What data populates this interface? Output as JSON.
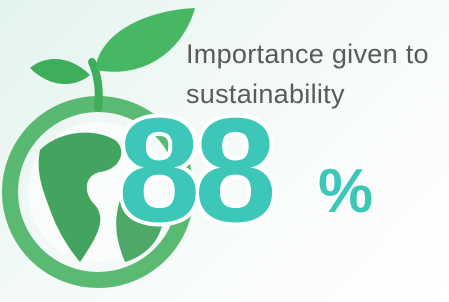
{
  "stat": {
    "label": "Importance given to sustainability",
    "value": 88,
    "unit": "%"
  }
}
